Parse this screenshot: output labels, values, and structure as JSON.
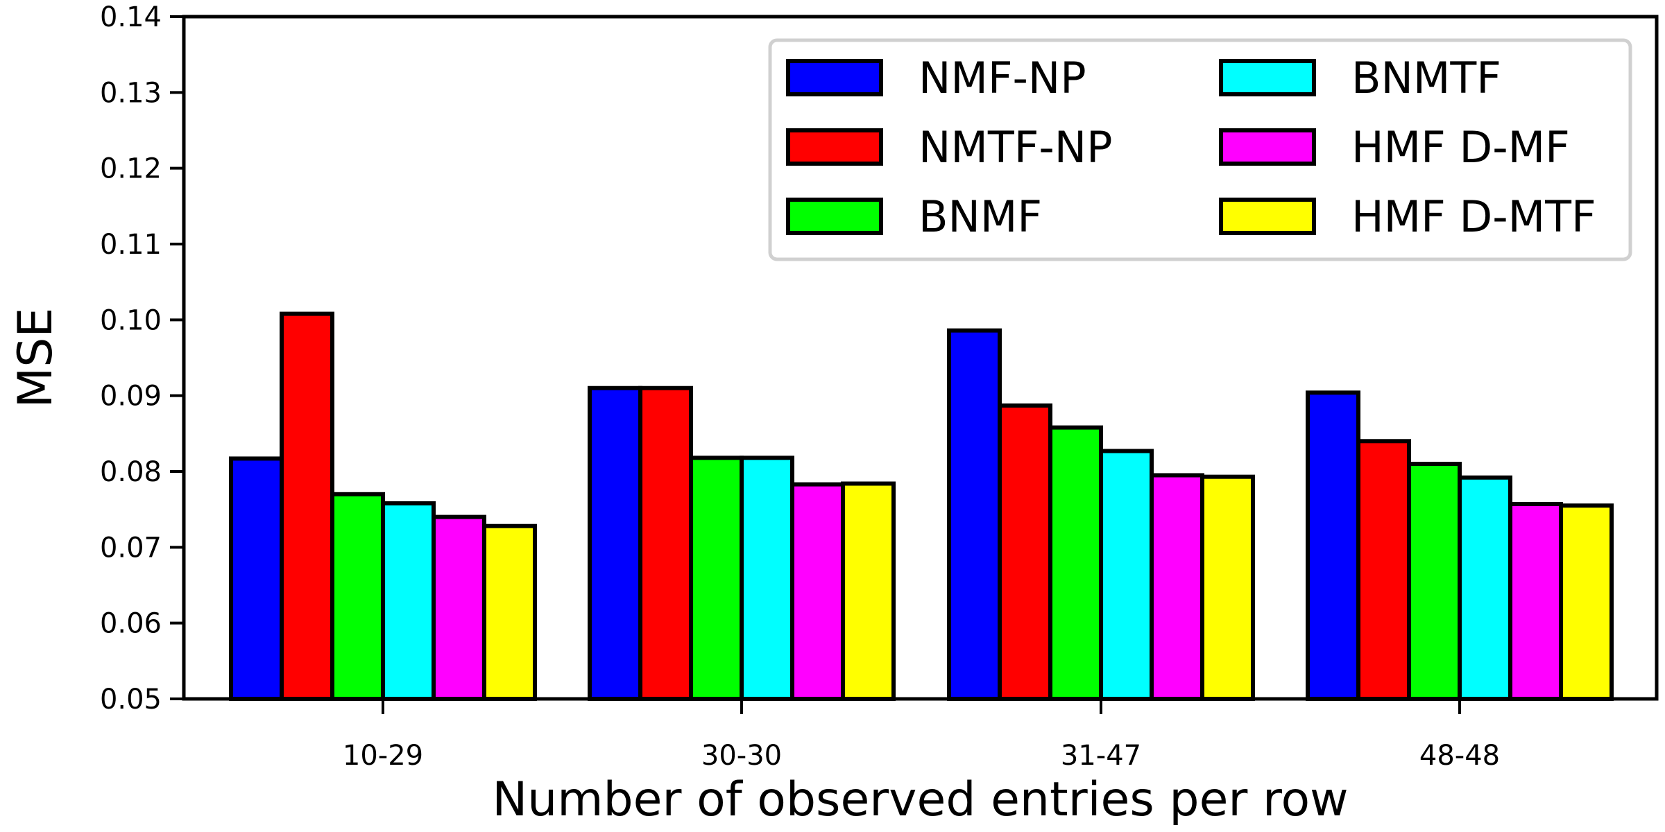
{
  "chart_data": {
    "type": "bar",
    "title": "",
    "xlabel": "Number of observed entries per row",
    "ylabel": "MSE",
    "ylim": [
      0.05,
      0.14
    ],
    "yticks": [
      "0.05",
      "0.06",
      "0.07",
      "0.08",
      "0.09",
      "0.10",
      "0.11",
      "0.12",
      "0.13",
      "0.14"
    ],
    "categories": [
      "10-29",
      "30-30",
      "31-47",
      "48-48"
    ],
    "grid": false,
    "legend_position": "top-right",
    "series": [
      {
        "name": "NMF-NP",
        "color": "#0000ff",
        "values": [
          0.0817,
          0.091,
          0.0986,
          0.0904
        ]
      },
      {
        "name": "NMTF-NP",
        "color": "#ff0000",
        "values": [
          0.1008,
          0.091,
          0.0887,
          0.084
        ]
      },
      {
        "name": "BNMF",
        "color": "#00ff00",
        "values": [
          0.077,
          0.0818,
          0.0858,
          0.081
        ]
      },
      {
        "name": "BNMTF",
        "color": "#00ffff",
        "values": [
          0.0758,
          0.0818,
          0.0827,
          0.0792
        ]
      },
      {
        "name": "HMF D-MF",
        "color": "#ff00ff",
        "values": [
          0.074,
          0.0783,
          0.0795,
          0.0757
        ]
      },
      {
        "name": "HMF D-MTF",
        "color": "#ffff00",
        "values": [
          0.0728,
          0.0784,
          0.0793,
          0.0755
        ]
      }
    ]
  }
}
